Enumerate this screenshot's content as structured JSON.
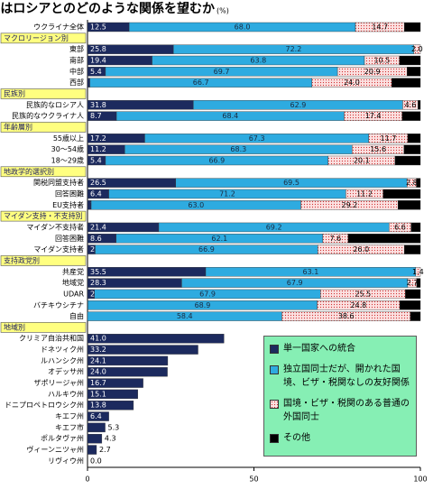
{
  "chart_data": {
    "type": "stacked-barh",
    "title": "ウクライナ国民はロシアとのどのような関係を望むか",
    "unit": "(%)",
    "xlim": [
      0,
      100
    ],
    "xticks": [
      0,
      50,
      100
    ],
    "series": [
      {
        "name": "単一国家への統合",
        "color": "#1c2a5e"
      },
      {
        "name": "独立国同士だが、開かれた国境、ビザ・税関なしの友好関係",
        "color": "#2eabe0"
      },
      {
        "name": "国境・ビザ・税関のある普通の外国同士",
        "color": "#fbe0e0"
      },
      {
        "name": "その他",
        "color": "#000000"
      }
    ],
    "sections": [
      {
        "rows": [
          {
            "label": "ウクライナ全体",
            "values": [
              12.5,
              68.0,
              14.7,
              4.8
            ],
            "value_labels": [
              "12.5",
              "68.0",
              "14.7",
              null
            ]
          }
        ]
      },
      {
        "header": "マクロリージョン別",
        "rows": [
          {
            "label": "東部",
            "values": [
              25.8,
              72.2,
              2.0,
              0
            ],
            "value_labels": [
              "25.8",
              "72.2",
              "2.0",
              null
            ]
          },
          {
            "label": "南部",
            "values": [
              19.4,
              63.8,
              10.5,
              6.3
            ],
            "value_labels": [
              "19.4",
              "63.8",
              "10.5",
              null
            ]
          },
          {
            "label": "中部",
            "values": [
              5.4,
              69.7,
              20.9,
              4.0
            ],
            "value_labels": [
              "5.4",
              "69.7",
              "20.9",
              null
            ]
          },
          {
            "label": "西部",
            "values": [
              0.7,
              66.7,
              24.0,
              8.6
            ],
            "value_labels": [
              "0.7",
              "66.7",
              "24.0",
              null
            ]
          }
        ]
      },
      {
        "header": "民族別",
        "rows": [
          {
            "label": "民族的なロシア人",
            "values": [
              31.8,
              62.9,
              4.6,
              0.7
            ],
            "value_labels": [
              "31.8",
              "62.9",
              "4.6",
              null
            ]
          },
          {
            "label": "民族的なウクライナ人",
            "values": [
              8.7,
              68.4,
              17.4,
              5.5
            ],
            "value_labels": [
              "8.7",
              "68.4",
              "17.4",
              null
            ]
          }
        ]
      },
      {
        "header": "年齢層別",
        "rows": [
          {
            "label": "55歳以上",
            "values": [
              17.2,
              67.3,
              11.7,
              3.8
            ],
            "value_labels": [
              "17.2",
              "67.3",
              "11.7",
              null
            ]
          },
          {
            "label": "30～54歳",
            "values": [
              11.2,
              68.3,
              15.6,
              4.9
            ],
            "value_labels": [
              "11.2",
              "68.3",
              "15.6",
              null
            ]
          },
          {
            "label": "18～29歳",
            "values": [
              5.4,
              66.9,
              20.1,
              7.6
            ],
            "value_labels": [
              "5.4",
              "66.9",
              "20.1",
              null
            ]
          }
        ]
      },
      {
        "header": "地政学的選択別",
        "rows": [
          {
            "label": "関税同盟支持者",
            "values": [
              26.5,
              69.5,
              2.8,
              1.2
            ],
            "value_labels": [
              "26.5",
              "69.5",
              "2.8",
              null
            ]
          },
          {
            "label": "回答困難",
            "values": [
              6.4,
              71.2,
              11.2,
              11.2
            ],
            "value_labels": [
              "6.4",
              "71.2",
              "11.2",
              null
            ]
          },
          {
            "label": "EU支持者",
            "values": [
              1.1,
              63.0,
              29.2,
              6.7
            ],
            "value_labels": [
              "1.1",
              "63.0",
              "29.2",
              null
            ]
          }
        ]
      },
      {
        "header": "マイダン支持・不支持別",
        "rows": [
          {
            "label": "マイダン不支持者",
            "values": [
              21.4,
              69.2,
              6.6,
              2.8
            ],
            "value_labels": [
              "21.4",
              "69.2",
              "6.6",
              null
            ]
          },
          {
            "label": "回答困難",
            "values": [
              8.6,
              62.1,
              7.6,
              21.7
            ],
            "value_labels": [
              "8.6",
              "62.1",
              "7.6",
              null
            ]
          },
          {
            "label": "マイダン支持者",
            "values": [
              2.3,
              66.9,
              26.0,
              4.8
            ],
            "value_labels": [
              "2.3",
              "66.9",
              "26.0",
              null
            ]
          }
        ]
      },
      {
        "header": "支持政党別",
        "rows": [
          {
            "label": "共産党",
            "values": [
              35.5,
              63.1,
              1.4,
              0
            ],
            "value_labels": [
              "35.5",
              "63.1",
              "1.4",
              null
            ]
          },
          {
            "label": "地域党",
            "values": [
              28.3,
              67.9,
              2.7,
              1.1
            ],
            "value_labels": [
              "28.3",
              "67.9",
              "2.7",
              null
            ]
          },
          {
            "label": "UDAR",
            "values": [
              2.1,
              67.9,
              25.5,
              4.5
            ],
            "value_labels": [
              "2.1",
              "67.9",
              "25.5",
              null
            ]
          },
          {
            "label": "バチキウシチナ",
            "values": [
              0.1,
              68.9,
              24.8,
              6.2
            ],
            "value_labels": [
              "0.1",
              "68.9",
              "24.8",
              null
            ]
          },
          {
            "label": "自由",
            "values": [
              0.0,
              58.4,
              38.6,
              3.0
            ],
            "value_labels": [
              "0.0",
              "58.4",
              "38.6",
              null
            ]
          }
        ]
      },
      {
        "header": "地域別",
        "rows": [
          {
            "label": "クリミア自治共和国",
            "values": [
              41.0
            ],
            "value_labels": [
              "41.0"
            ]
          },
          {
            "label": "ドネツィク州",
            "values": [
              33.2
            ],
            "value_labels": [
              "33.2"
            ]
          },
          {
            "label": "ルハンシク州",
            "values": [
              24.1
            ],
            "value_labels": [
              "24.1"
            ]
          },
          {
            "label": "オデッサ州",
            "values": [
              24.0
            ],
            "value_labels": [
              "24.0"
            ]
          },
          {
            "label": "ザポリージャ州",
            "values": [
              16.7
            ],
            "value_labels": [
              "16.7"
            ]
          },
          {
            "label": "ハルキウ州",
            "values": [
              15.1
            ],
            "value_labels": [
              "15.1"
            ]
          },
          {
            "label": "ドニプロペトロウシク州",
            "values": [
              13.8
            ],
            "value_labels": [
              "13.8"
            ]
          },
          {
            "label": "キエフ州",
            "values": [
              6.4
            ],
            "value_labels": [
              "6.4"
            ]
          },
          {
            "label": "キエフ市",
            "values": [
              5.3
            ],
            "value_labels": [
              "5.3"
            ]
          },
          {
            "label": "ポルタヴァ州",
            "values": [
              4.3
            ],
            "value_labels": [
              "4.3"
            ]
          },
          {
            "label": "ヴィーンニツャ州",
            "values": [
              2.7
            ],
            "value_labels": [
              "2.7"
            ]
          },
          {
            "label": "リヴィウ州",
            "values": [
              0.0
            ],
            "value_labels": [
              "0.0"
            ]
          }
        ]
      }
    ]
  }
}
